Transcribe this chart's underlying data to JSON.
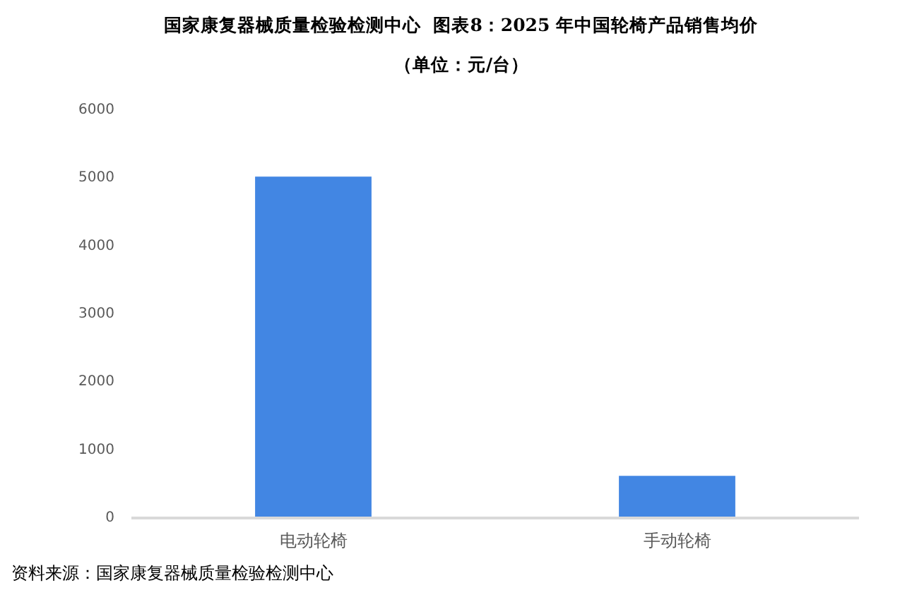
{
  "chart_data": {
    "type": "bar",
    "title": "国家康复器械质量检验检测中心  图表8：2025 年中国轮椅产品销售均价",
    "subtitle": "（单位：元/台）",
    "categories": [
      "电动轮椅",
      "手动轮椅"
    ],
    "values": [
      5000,
      600
    ],
    "color": "#4286e3",
    "ylim": [
      0,
      6000
    ],
    "yticks": [
      0,
      1000,
      2000,
      3000,
      4000,
      5000,
      6000
    ],
    "annotations": [
      "资料来源：国家康复器械质量检验检测中心"
    ]
  }
}
